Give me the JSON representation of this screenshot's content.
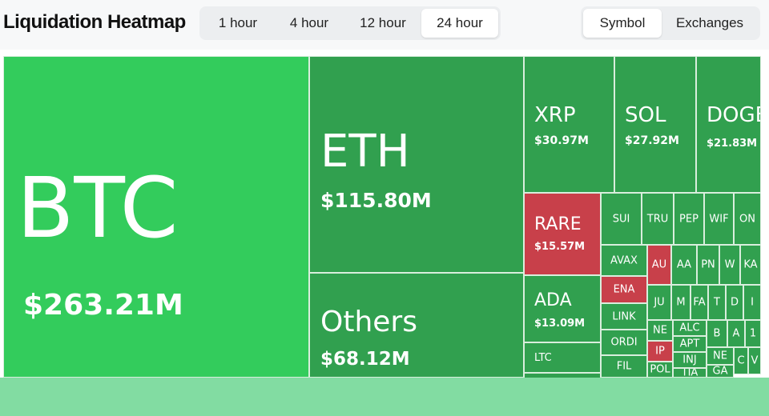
{
  "header": {
    "title": "Liquidation Heatmap"
  },
  "timeframes": [
    {
      "label": "1 hour",
      "active": false
    },
    {
      "label": "4 hour",
      "active": false
    },
    {
      "label": "12 hour",
      "active": false
    },
    {
      "label": "24 hour",
      "active": true
    }
  ],
  "views": [
    {
      "label": "Symbol",
      "active": true
    },
    {
      "label": "Exchanges",
      "active": false
    }
  ],
  "colors": {
    "green": "#31a04f",
    "bright_green": "#33cc5c",
    "red": "#c8404a",
    "footer": "#82dca2"
  },
  "tiles": {
    "btc": {
      "symbol": "BTC",
      "value": "$263.21M"
    },
    "eth": {
      "symbol": "ETH",
      "value": "$115.80M"
    },
    "others": {
      "symbol": "Others",
      "value": "$68.12M"
    },
    "xrp": {
      "symbol": "XRP",
      "value": "$30.97M"
    },
    "sol": {
      "symbol": "SOL",
      "value": "$27.92M"
    },
    "doge": {
      "symbol": "DOGE",
      "value": "$21.83M"
    },
    "rare": {
      "symbol": "RARE",
      "value": "$15.57M"
    },
    "ada": {
      "symbol": "ADA",
      "value": "$13.09M"
    }
  },
  "small_tiles": {
    "ltc": "LTC",
    "sui": "SUI",
    "tru": "TRU",
    "pep": "PEP",
    "wif": "WIF",
    "on": "ON",
    "avax": "AVAX",
    "au": "AU",
    "aa": "AA",
    "pn": "PN",
    "w": "W",
    "ka": "KA",
    "ena": "ENA",
    "ju": "JU",
    "m": "M",
    "f": "FA",
    "t": "T",
    "d": "D",
    "i": "I",
    "link": "LINK",
    "ne": "NE",
    "alc": "ALC",
    "b": "B",
    "a": "A",
    "one": "1",
    "ordi": "ORDI",
    "ip": "IP",
    "apt": "APT",
    "fil": "FIL",
    "inj": "INJ",
    "ne2": "NE",
    "c": "C",
    "v": "V",
    "pol": "POL",
    "tia": "TIA",
    "ga": "GA"
  }
}
